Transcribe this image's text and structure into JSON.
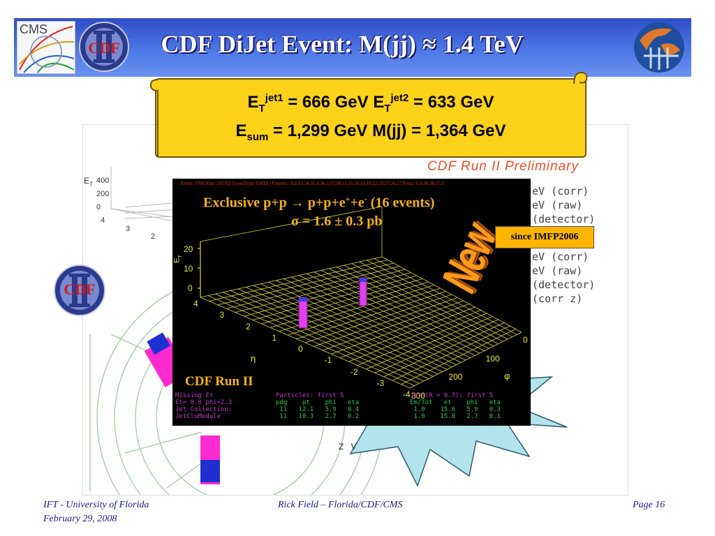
{
  "title": "CDF DiJet Event: M(jj) ≈ 1.4 TeV",
  "logos": {
    "cms": "CMS",
    "cdf": "CDF"
  },
  "scroll": {
    "et_symbol": "E",
    "et_sub": "T",
    "jet1_sup": "jet1",
    "jet1_value": " = 666 GeV  ",
    "jet2_sup": "jet2",
    "jet2_value": " = 633 GeV",
    "esum_symbol": "E",
    "esum_sub": "sum",
    "esum_value": " = 1,299 GeV M(jj) = 1,364 GeV"
  },
  "background_display": {
    "caption": "CDF Run II Preliminary",
    "legend_lines": [
      "eV (corr)",
      "eV (raw)",
      "(detector)",
      "eV (corr)",
      "eV (raw)",
      "(detector)",
      "(corr z)"
    ],
    "axis_label": "E",
    "axis_label_sub": "T",
    "y_ticks": [
      "400",
      "200",
      "0"
    ],
    "x_ticks": [
      "4",
      "3",
      "2"
    ],
    "bottom_text": "z v"
  },
  "inset": {
    "header": "Event: 3788 Run: 195702 EventType: DATA | Unpresc: 0,1,33,34,35,4,36,5,37,38,11,15,16,18,19,22,23,57,26,27 Presc: 0,4,36,38,15,1",
    "line1_main": "Exclusive p+p → p+p+e",
    "line1_sup1": "+",
    "line1_mid": "+e",
    "line1_sup2": "-",
    "line1_tail": " (16 events)",
    "line2": "σ = 1.6 ± 0.3 pb",
    "run_label": "CDF Run II",
    "z_axis_label": "E",
    "z_axis_sub": "T",
    "z_ticks": [
      "20",
      "10",
      "0"
    ],
    "eta_label": "η",
    "phi_label": "φ",
    "eta_ticks": [
      "4",
      "3",
      "2",
      "1",
      "0",
      "-1",
      "-2",
      "-3",
      "-4"
    ],
    "phi_ticks": [
      "0",
      "100",
      "200",
      "300"
    ],
    "table_left": "Missing Et\nEt= 0.8 phi=2.3\nJet Collection:\nJetCluModule",
    "table_mid_head": "Particles: first 5",
    "table_mid": "pdg    pt    phi   eta\n 11   12.1   5.9   0.4\n 11   10.3   2.7   0.2",
    "table_right_head": "Jets(R = 0.7): first 5",
    "table_right": "Em/Tot   et    phi   eta\n 1.0    15.6   5.9   0.3\n 1.0    15.0   2.7   0.1"
  },
  "new_badge": "New",
  "since_label": "since IMFP2006",
  "footer": {
    "left_line1": "IFT - University of Florida",
    "left_line2": "February 29, 2008",
    "center": "Rick Field – Florida/CDF/CMS",
    "right": "Page 16"
  },
  "colors": {
    "title_bar": "#3d62d8",
    "scroll": "#ffd21a",
    "burst": "#b3e3ec",
    "inset_grid": "#e8e83a",
    "tower": "#e040f0",
    "text_orange": "#f5b21c"
  }
}
